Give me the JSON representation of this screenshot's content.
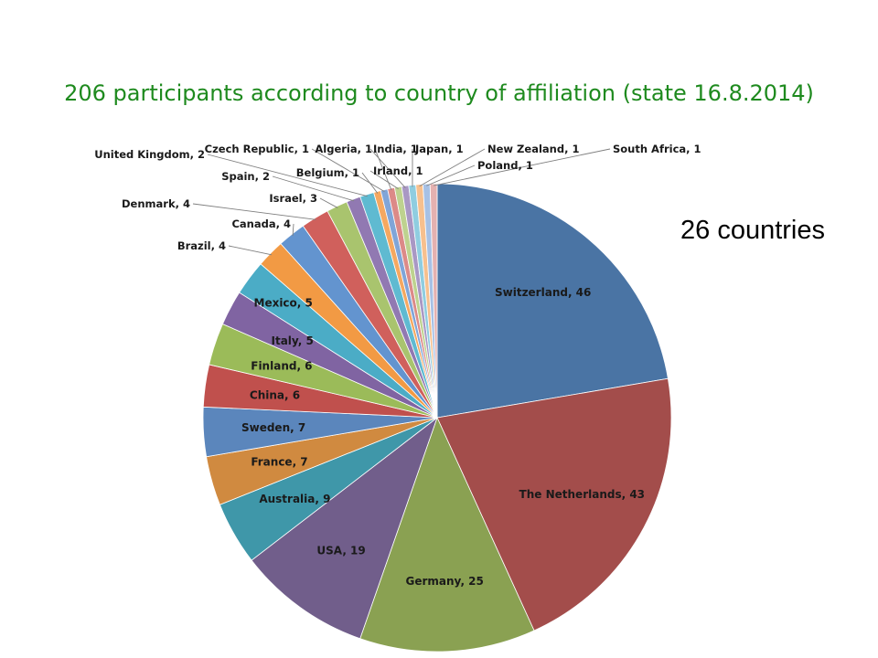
{
  "title": "206 participants according to country of affiliation (state 16.8.2014)",
  "title_color": "#1e8a1e",
  "note": "26 countries",
  "chart_data": {
    "type": "pie",
    "title": "206 participants according to country of affiliation (state 16.8.2014)",
    "total": 206,
    "slices": [
      {
        "label": "Switzerland, 46",
        "value": 46,
        "color": "#4a74a4"
      },
      {
        "label": "The Netherlands, 43",
        "value": 43,
        "color": "#a34d4b"
      },
      {
        "label": "Germany, 25",
        "value": 25,
        "color": "#8aa152"
      },
      {
        "label": "USA, 19",
        "value": 19,
        "color": "#715e8b"
      },
      {
        "label": "Australia, 9",
        "value": 9,
        "color": "#3f97a9"
      },
      {
        "label": "France, 7",
        "value": 7,
        "color": "#d08a40"
      },
      {
        "label": "Sweden, 7",
        "value": 7,
        "color": "#5b86bc"
      },
      {
        "label": "China, 6",
        "value": 6,
        "color": "#c0504d"
      },
      {
        "label": "Finland, 6",
        "value": 6,
        "color": "#9bbb59"
      },
      {
        "label": "Italy, 5",
        "value": 5,
        "color": "#8064a2"
      },
      {
        "label": "Mexico, 5",
        "value": 5,
        "color": "#4bacc6"
      },
      {
        "label": "Brazil, 4",
        "value": 4,
        "color": "#f29a44"
      },
      {
        "label": "Canada, 4",
        "value": 4,
        "color": "#6394cf"
      },
      {
        "label": "Denmark, 4",
        "value": 4,
        "color": "#d0605c"
      },
      {
        "label": "Israel, 3",
        "value": 3,
        "color": "#a9c46e"
      },
      {
        "label": "Spain, 2",
        "value": 2,
        "color": "#9179b2"
      },
      {
        "label": "United Kingdom, 2",
        "value": 2,
        "color": "#5fbad1"
      },
      {
        "label": "Belgium, 1",
        "value": 1,
        "color": "#f5a860"
      },
      {
        "label": "Czech Republic, 1",
        "value": 1,
        "color": "#80a5d8"
      },
      {
        "label": "Algeria, 1",
        "value": 1,
        "color": "#dc8a88"
      },
      {
        "label": "Irland, 1",
        "value": 1,
        "color": "#bed28f"
      },
      {
        "label": "India, 1",
        "value": 1,
        "color": "#a998c4"
      },
      {
        "label": "Japan, 1",
        "value": 1,
        "color": "#8fcde0"
      },
      {
        "label": "New Zealand, 1",
        "value": 1,
        "color": "#f7c08e"
      },
      {
        "label": "Poland, 1",
        "value": 1,
        "color": "#a7c1e5"
      },
      {
        "label": "South Africa, 1",
        "value": 1,
        "color": "#e4b1b0"
      }
    ]
  }
}
